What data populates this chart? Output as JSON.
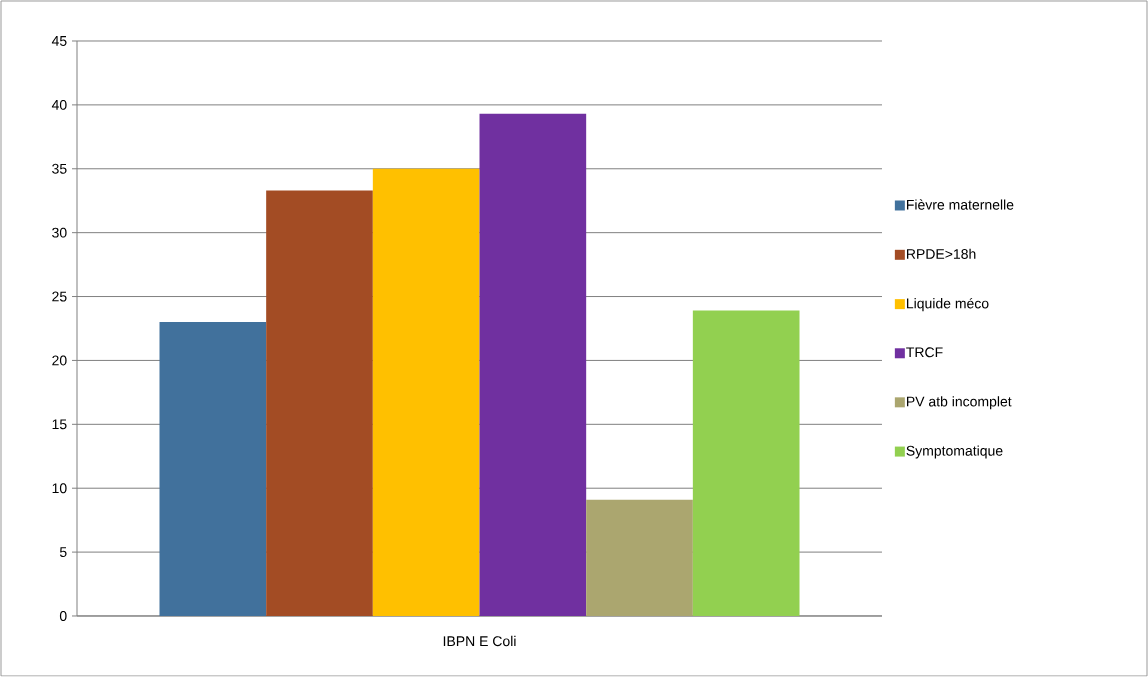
{
  "chart_data": {
    "type": "bar",
    "categories": [
      "IBPN E Coli"
    ],
    "series": [
      {
        "name": "Fièvre maternelle",
        "color": "#41719c",
        "values": [
          23.0
        ]
      },
      {
        "name": "RPDE>18h",
        "color": "#a34c24",
        "values": [
          33.3
        ]
      },
      {
        "name": "Liquide méco",
        "color": "#ffc000",
        "values": [
          35.0
        ]
      },
      {
        "name": "TRCF",
        "color": "#7030a0",
        "values": [
          39.3
        ]
      },
      {
        "name": "PV atb incomplet",
        "color": "#aba66f",
        "values": [
          9.1
        ]
      },
      {
        "name": "Symptomatique",
        "color": "#92d050",
        "values": [
          23.9
        ]
      }
    ],
    "ylim": [
      0,
      45
    ],
    "yticks": [
      0,
      5,
      10,
      15,
      20,
      25,
      30,
      35,
      40,
      45
    ],
    "grid": "y",
    "legend": "right"
  }
}
